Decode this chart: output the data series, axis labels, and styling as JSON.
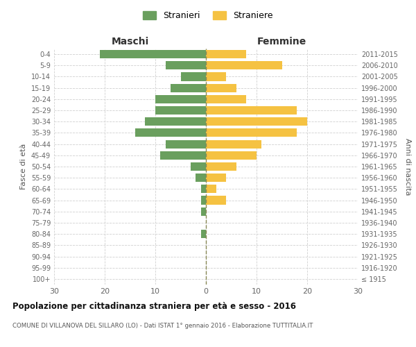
{
  "age_groups": [
    "100+",
    "95-99",
    "90-94",
    "85-89",
    "80-84",
    "75-79",
    "70-74",
    "65-69",
    "60-64",
    "55-59",
    "50-54",
    "45-49",
    "40-44",
    "35-39",
    "30-34",
    "25-29",
    "20-24",
    "15-19",
    "10-14",
    "5-9",
    "0-4"
  ],
  "birth_years": [
    "≤ 1915",
    "1916-1920",
    "1921-1925",
    "1926-1930",
    "1931-1935",
    "1936-1940",
    "1941-1945",
    "1946-1950",
    "1951-1955",
    "1956-1960",
    "1961-1965",
    "1966-1970",
    "1971-1975",
    "1976-1980",
    "1981-1985",
    "1986-1990",
    "1991-1995",
    "1996-2000",
    "2001-2005",
    "2006-2010",
    "2011-2015"
  ],
  "maschi": [
    0,
    0,
    0,
    0,
    1,
    0,
    1,
    1,
    1,
    2,
    3,
    9,
    8,
    14,
    12,
    10,
    10,
    7,
    5,
    8,
    21
  ],
  "femmine": [
    0,
    0,
    0,
    0,
    0,
    0,
    0,
    4,
    2,
    4,
    6,
    10,
    11,
    18,
    20,
    18,
    8,
    6,
    4,
    15,
    8
  ],
  "color_maschi": "#6a9f5e",
  "color_femmine": "#f5c242",
  "title": "Popolazione per cittadinanza straniera per età e sesso - 2016",
  "subtitle": "COMUNE DI VILLANOVA DEL SILLARO (LO) - Dati ISTAT 1° gennaio 2016 - Elaborazione TUTTITALIA.IT",
  "xlabel_left": "Maschi",
  "xlabel_right": "Femmine",
  "ylabel_left": "Fasce di età",
  "ylabel_right": "Anni di nascita",
  "legend_maschi": "Stranieri",
  "legend_femmine": "Straniere",
  "xlim": 30,
  "background_color": "#ffffff",
  "grid_color": "#d0d0d0",
  "bar_height": 0.75
}
